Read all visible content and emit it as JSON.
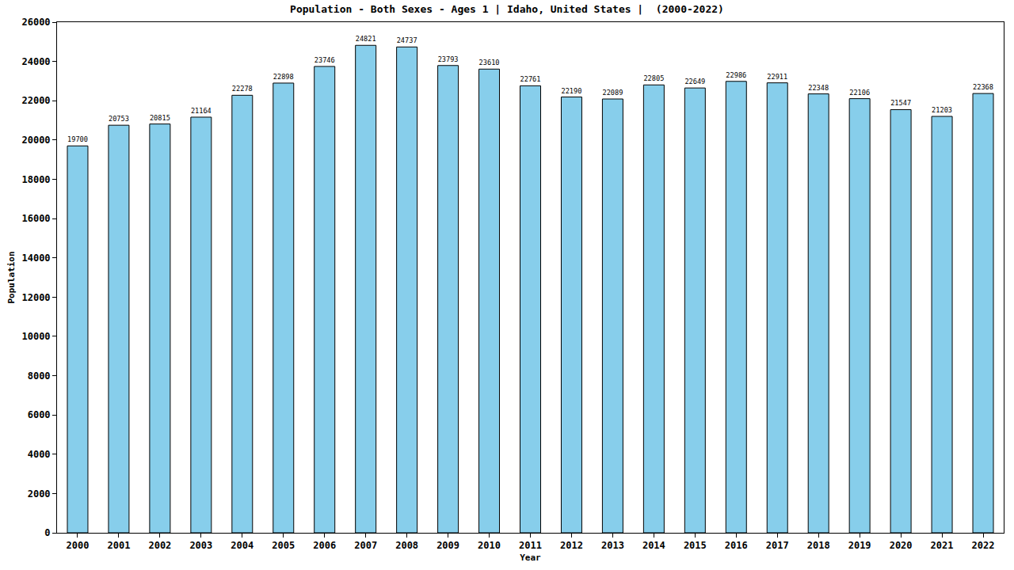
{
  "chart_data": {
    "type": "bar",
    "title": "Population - Both Sexes - Ages 1 | Idaho, United States |  (2000-2022)",
    "x_label": "Year",
    "y_label": "Population",
    "categories": [
      "2000",
      "2001",
      "2002",
      "2003",
      "2004",
      "2005",
      "2006",
      "2007",
      "2008",
      "2009",
      "2010",
      "2011",
      "2012",
      "2013",
      "2014",
      "2015",
      "2016",
      "2017",
      "2018",
      "2019",
      "2020",
      "2021",
      "2022"
    ],
    "values": [
      19700,
      20753,
      20815,
      21164,
      22278,
      22898,
      23746,
      24821,
      24737,
      23793,
      23610,
      22761,
      22190,
      22089,
      22805,
      22649,
      22986,
      22911,
      22348,
      22106,
      21547,
      21203,
      22368
    ],
    "color": "#87ceeb",
    "ylim": [
      0,
      26000
    ],
    "yticks": [
      0,
      2000,
      4000,
      6000,
      8000,
      10000,
      12000,
      14000,
      16000,
      18000,
      20000,
      22000,
      24000,
      26000
    ],
    "grid": false,
    "data_labels": true
  }
}
